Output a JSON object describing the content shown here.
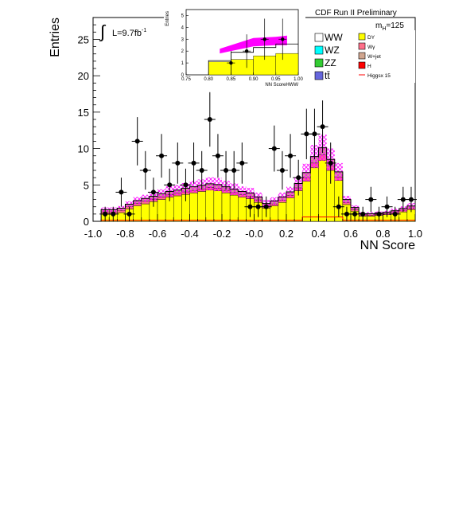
{
  "chart_data": [
    {
      "type": "bar",
      "title": "",
      "header": "CDF Run II Preliminary",
      "xlabel": "NN Score",
      "ylabel": "Entries",
      "xlim": [
        -1.0,
        1.0
      ],
      "ylim": [
        0,
        28
      ],
      "x_ticks": [
        "-1.0",
        "-0.8",
        "-0.6",
        "-0.4",
        "-0.2",
        "-0.0",
        "0.2",
        "0.4",
        "0.6",
        "0.8",
        "1.0"
      ],
      "y_ticks": [
        "0",
        "5",
        "10",
        "15",
        "20",
        "25"
      ],
      "luminosity_label": "L=9.7fb",
      "luminosity_sup": "-1",
      "mass_label": "m",
      "mass_sub": "H",
      "mass_value": "=125",
      "bin_edges": [
        -1.0,
        -0.95,
        -0.9,
        -0.85,
        -0.8,
        -0.75,
        -0.7,
        -0.65,
        -0.6,
        -0.55,
        -0.5,
        -0.45,
        -0.4,
        -0.35,
        -0.3,
        -0.25,
        -0.2,
        -0.15,
        -0.1,
        -0.05,
        0.0,
        0.05,
        0.1,
        0.15,
        0.2,
        0.25,
        0.3,
        0.35,
        0.4,
        0.45,
        0.5,
        0.55,
        0.6,
        0.65,
        0.7,
        0.75,
        0.8,
        0.85,
        0.9,
        0.95,
        1.0
      ],
      "series": [
        {
          "name": "DY",
          "color": "#ffff00",
          "values": [
            1.0,
            1.0,
            1.2,
            1.7,
            2.1,
            2.4,
            2.7,
            3.0,
            3.3,
            3.5,
            3.7,
            3.9,
            4.1,
            4.3,
            4.2,
            3.9,
            3.6,
            3.3,
            3.1,
            2.6,
            1.8,
            2.1,
            2.6,
            3.2,
            4.2,
            5.5,
            7.4,
            8.4,
            7.0,
            5.6,
            2.3,
            1.4,
            0.7,
            0.7,
            0.8,
            0.9,
            1.0,
            1.3,
            1.6,
            1.8
          ]
        },
        {
          "name": "Wγ",
          "color": "#ff6f89",
          "values": [
            0.3,
            0.3,
            0.3,
            0.3,
            0.35,
            0.35,
            0.35,
            0.35,
            0.35,
            0.35,
            0.35,
            0.35,
            0.35,
            0.35,
            0.35,
            0.35,
            0.35,
            0.35,
            0.35,
            0.35,
            0.3,
            0.3,
            0.3,
            0.35,
            0.4,
            0.5,
            0.6,
            0.7,
            0.6,
            0.5,
            0.3,
            0.2,
            0.15,
            0.15,
            0.15,
            0.15,
            0.2,
            0.2,
            0.2,
            0.2
          ]
        },
        {
          "name": "W+jet",
          "color": "#d0a58e",
          "values": [
            0.3,
            0.3,
            0.3,
            0.35,
            0.4,
            0.4,
            0.4,
            0.45,
            0.45,
            0.45,
            0.5,
            0.5,
            0.5,
            0.5,
            0.5,
            0.5,
            0.45,
            0.45,
            0.45,
            0.4,
            0.35,
            0.4,
            0.45,
            0.5,
            0.6,
            0.7,
            0.9,
            1.0,
            0.9,
            0.7,
            0.4,
            0.3,
            0.2,
            0.2,
            0.2,
            0.2,
            0.25,
            0.25,
            0.3,
            0.3
          ]
        }
      ],
      "total_background": [
        1.6,
        1.6,
        1.8,
        2.35,
        2.85,
        3.15,
        3.45,
        3.8,
        4.1,
        4.3,
        4.55,
        4.75,
        4.95,
        5.15,
        5.05,
        4.75,
        4.4,
        4.1,
        3.9,
        3.35,
        2.45,
        2.8,
        3.35,
        4.05,
        5.2,
        6.7,
        8.9,
        10.1,
        8.5,
        6.8,
        3.0,
        1.9,
        1.05,
        1.05,
        1.15,
        1.25,
        1.45,
        1.75,
        2.1,
        2.3
      ],
      "uncertainty_band": [
        0.3,
        0.3,
        0.3,
        0.4,
        0.5,
        0.5,
        0.6,
        0.6,
        0.7,
        0.7,
        0.7,
        0.8,
        0.8,
        0.9,
        0.9,
        0.8,
        0.8,
        0.7,
        0.7,
        0.6,
        0.5,
        0.5,
        0.6,
        0.7,
        0.9,
        1.2,
        1.6,
        1.8,
        1.5,
        1.2,
        0.5,
        0.3,
        0.2,
        0.2,
        0.2,
        0.2,
        0.3,
        0.3,
        0.4,
        0.4
      ],
      "data_points": {
        "name": "Data",
        "x": [
          -0.925,
          -0.875,
          -0.825,
          -0.775,
          -0.725,
          -0.675,
          -0.625,
          -0.575,
          -0.525,
          -0.475,
          -0.425,
          -0.375,
          -0.325,
          -0.275,
          -0.225,
          -0.175,
          -0.125,
          -0.075,
          -0.025,
          0.025,
          0.075,
          0.125,
          0.175,
          0.225,
          0.275,
          0.325,
          0.375,
          0.425,
          0.475,
          0.525,
          0.575,
          0.625,
          0.675,
          0.725,
          0.775,
          0.825,
          0.875,
          0.925,
          0.975
        ],
        "y": [
          1,
          1,
          4,
          1,
          11,
          7,
          4,
          9,
          5,
          8,
          5,
          8,
          7,
          14,
          9,
          7,
          7,
          8,
          2,
          2,
          2,
          10,
          7,
          9,
          6,
          12,
          12,
          13,
          8,
          2,
          1,
          1,
          1,
          3,
          1,
          2,
          1,
          3,
          3
        ]
      }
    },
    {
      "type": "bar",
      "title": "",
      "xlabel": "NN ScoreHWW",
      "ylabel": "Entries",
      "xlim": [
        0.75,
        1.0
      ],
      "ylim": [
        0,
        5.5
      ],
      "x_ticks": [
        "0.75",
        "0.80",
        "0.85",
        "0.90",
        "0.95",
        "1.00"
      ],
      "y_ticks": [
        "0",
        "1",
        "2",
        "3",
        "4",
        "5"
      ],
      "bin_edges": [
        0.8,
        0.85,
        0.9,
        0.95,
        1.0
      ],
      "series": [
        {
          "name": "DY",
          "color": "#ffff00",
          "values": [
            1.1,
            1.3,
            1.6,
            1.8
          ]
        }
      ],
      "total_background": [
        1.2,
        1.9,
        2.3,
        2.6
      ],
      "data_points": {
        "name": "Data",
        "x": [
          0.85,
          0.885,
          0.925,
          0.965
        ],
        "y": [
          1,
          2,
          3,
          3
        ]
      }
    }
  ],
  "legend": [
    {
      "label": "WW",
      "color": "#ffffff"
    },
    {
      "label": "DY",
      "color": "#ffff00"
    },
    {
      "label": "WZ",
      "color": "#00ffff"
    },
    {
      "label": "Wγ",
      "color": "#ff6f89"
    },
    {
      "label": "ZZ",
      "color": "#33cc33"
    },
    {
      "label": "W+jet",
      "color": "#d0a58e"
    },
    {
      "label": "tt̄",
      "color": "#6666dd"
    },
    {
      "label": "H",
      "color": "#ff0000"
    },
    {
      "label": "Higgsx 15",
      "color": "#ff0000"
    }
  ],
  "colors": {
    "band": "#ff00ff",
    "data": "#000000"
  }
}
